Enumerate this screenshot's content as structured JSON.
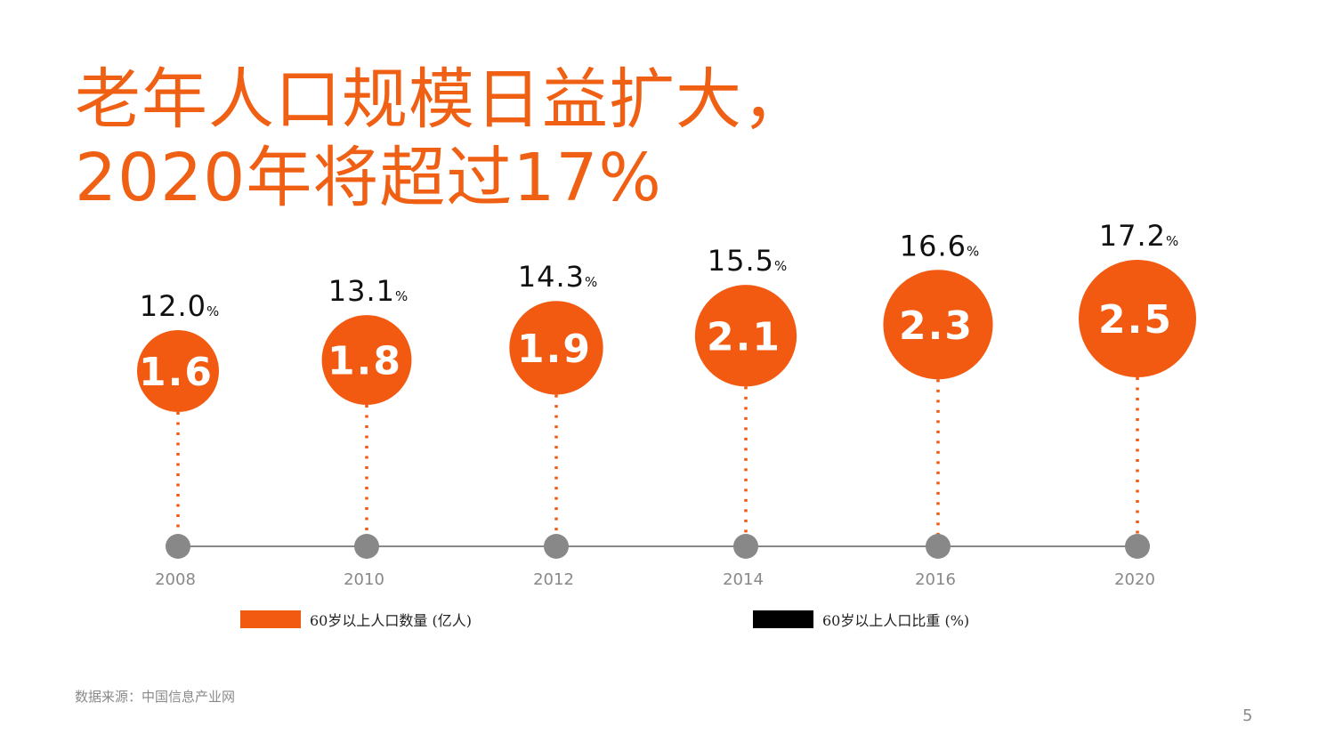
{
  "title": {
    "line1": "老年人口规模日益扩大，",
    "line2": "2020年将超过17%"
  },
  "colors": {
    "accent": "#f25a12",
    "title": "#f06014",
    "axis": "#888888",
    "ratio_legend": "#000000"
  },
  "chart_data": {
    "type": "bubble-timeline",
    "categories": [
      "2008",
      "2010",
      "2012",
      "2014",
      "2016",
      "2020"
    ],
    "series": [
      {
        "name": "60岁以上人口数量 (亿人)",
        "values": [
          1.6,
          1.8,
          1.9,
          2.1,
          2.3,
          2.5
        ]
      },
      {
        "name": "60岁以上人口比重 (%)",
        "values": [
          12.0,
          13.1,
          14.3,
          15.5,
          16.6,
          17.2
        ]
      }
    ],
    "value_labels": [
      "1.6",
      "1.8",
      "1.9",
      "2.1",
      "2.3",
      "2.5"
    ],
    "percent_labels": [
      "12.0",
      "13.1",
      "14.3",
      "15.5",
      "16.6",
      "17.2"
    ],
    "percent_unit": "%"
  },
  "legend": [
    {
      "label": "60岁以上人口数量 (亿人)",
      "color": "#f25a12"
    },
    {
      "label": "60岁以上人口比重 (%)",
      "color": "#000000"
    }
  ],
  "source": "数据来源：中国信息产业网",
  "page_number": "5"
}
